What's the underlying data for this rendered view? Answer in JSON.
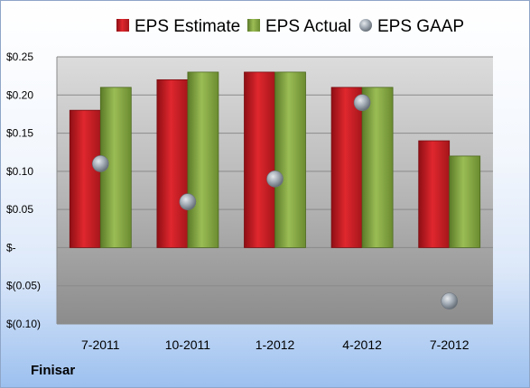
{
  "company_label": "Finisar",
  "chart_data": {
    "type": "bar",
    "categories": [
      "7-2011",
      "10-2011",
      "1-2012",
      "4-2012",
      "7-2012"
    ],
    "series": [
      {
        "name": "EPS Estimate",
        "kind": "bar",
        "color": "#d2232a",
        "values": [
          0.18,
          0.22,
          0.23,
          0.21,
          0.14
        ]
      },
      {
        "name": "EPS Actual",
        "kind": "bar",
        "color": "#82a540",
        "values": [
          0.21,
          0.23,
          0.23,
          0.21,
          0.12
        ]
      },
      {
        "name": "EPS GAAP",
        "kind": "marker",
        "color": "#9aa3ad",
        "values": [
          0.11,
          0.06,
          0.09,
          0.19,
          -0.07
        ]
      }
    ],
    "ylim": [
      -0.1,
      0.25
    ],
    "yticks": [
      0.25,
      0.2,
      0.15,
      0.1,
      0.05,
      0,
      -0.05,
      -0.1
    ],
    "ytick_labels": [
      "$0.25",
      "$0.20",
      "$0.15",
      "$0.10",
      "$0.05",
      "$-",
      "$(0.05)",
      "$(0.10)"
    ],
    "grid": true,
    "legend": "top"
  }
}
